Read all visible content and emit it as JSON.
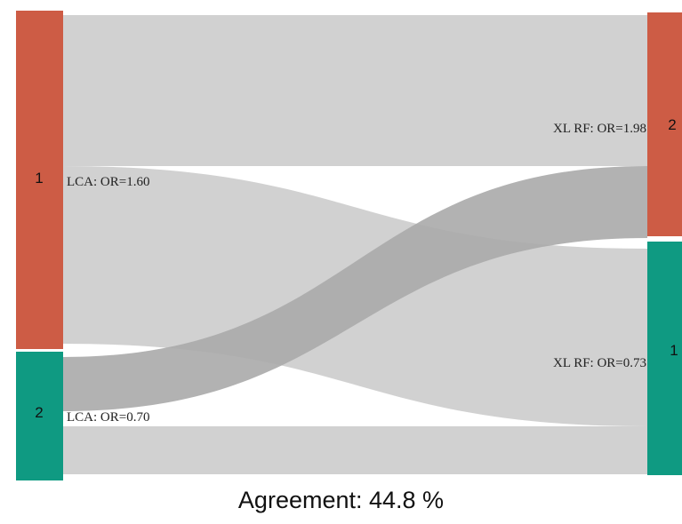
{
  "left_nodes": [
    {
      "id": "1",
      "label": "1",
      "annotation": "LCA: OR=1.60",
      "color": "#cd5c45"
    },
    {
      "id": "2",
      "label": "2",
      "annotation": "LCA: OR=0.70",
      "color": "#0f9a82"
    }
  ],
  "right_nodes": [
    {
      "id": "2",
      "label": "2",
      "annotation": "XL RF: OR=1.98",
      "color": "#cd5c45"
    },
    {
      "id": "1",
      "label": "1",
      "annotation": "XL RF: OR=0.73",
      "color": "#0f9a82"
    }
  ],
  "flows": [
    {
      "from": "1",
      "to": "2",
      "color": "#cccccc"
    },
    {
      "from": "1",
      "to": "1",
      "color": "#cccccc"
    },
    {
      "from": "2",
      "to": "2",
      "color": "#aaaaaa"
    },
    {
      "from": "2",
      "to": "1",
      "color": "#cccccc"
    }
  ],
  "caption": "Agreement: 44.8 %"
}
